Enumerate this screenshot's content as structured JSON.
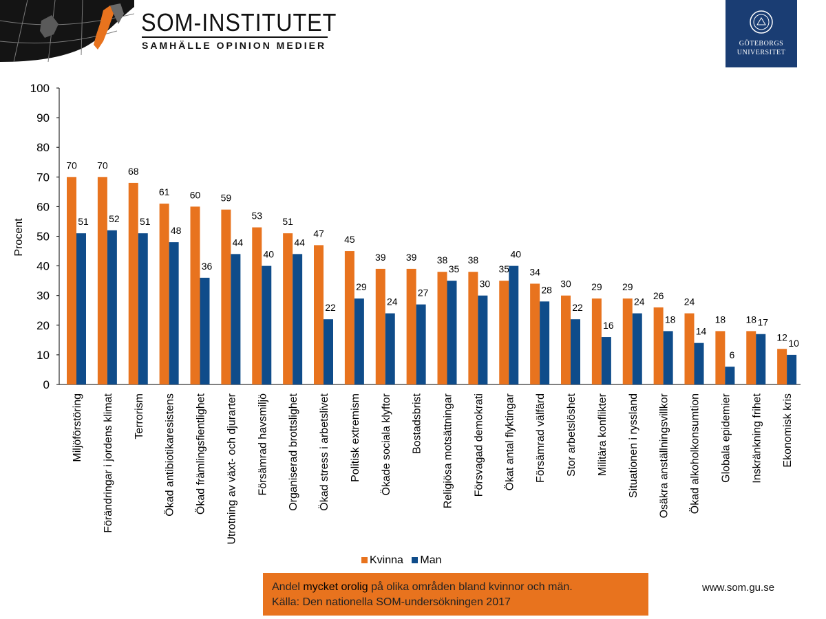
{
  "brand": {
    "title": "SOM-INSTITUTET",
    "subtitle": "SAMHÄLLE OPINION MEDIER",
    "university_line1": "GÖTEBORGS",
    "university_line2": "UNIVERSITET"
  },
  "colors": {
    "kvinna": "#e8731e",
    "man": "#0f4c8a",
    "caption_bg": "#e8731e",
    "gu_blue": "#1a3d73"
  },
  "caption": {
    "line1_pre": "Andel ",
    "line1_emph": "mycket orolig",
    "line1_post": " på olika områden bland kvinnor och män.",
    "line2": "Källa: Den nationella SOM-undersökningen 2017"
  },
  "site_url": "www.som.gu.se",
  "chart_data": {
    "type": "bar",
    "ylabel": "Procent",
    "xlabel": "",
    "ylim": [
      0,
      100
    ],
    "yticks": [
      "0",
      "10",
      "20",
      "30",
      "40",
      "50",
      "60",
      "70",
      "80",
      "90",
      "100"
    ],
    "grid": false,
    "legend_position": "bottom-center",
    "categories": [
      "Miljöförstöring",
      "Förändringar i jordens klimat",
      "Terrorism",
      "Ökad antibiotikaresistens",
      "Ökad främlingsfientlighet",
      "Utrotning av växt- och djurarter",
      "Försämrad havsmiljö",
      "Organiserad brottslighet",
      "Ökad stress i arbetslivet",
      "Politisk extremism",
      "Ökade sociala klyftor",
      "Bostadsbrist",
      "Religiösa motsättningar",
      "Försvagad demokrati",
      "Ökat antal flyktingar",
      "Försämrad välfärd",
      "Stor arbetslöshet",
      "Militära konflikter",
      "Situationen i ryssland",
      "Osäkra anställningsvillkor",
      "Ökad alkoholkonsumtion",
      "Globala epidemier",
      "Inskränkning frihet",
      "Ekonomisk kris"
    ],
    "series": [
      {
        "name": "Kvinna",
        "values": [
          70,
          70,
          68,
          61,
          60,
          59,
          53,
          51,
          47,
          45,
          39,
          39,
          38,
          38,
          35,
          34,
          30,
          29,
          29,
          26,
          24,
          18,
          18,
          12
        ]
      },
      {
        "name": "Man",
        "values": [
          51,
          52,
          51,
          48,
          36,
          44,
          40,
          44,
          22,
          29,
          24,
          27,
          35,
          30,
          40,
          28,
          22,
          16,
          24,
          18,
          14,
          6,
          17,
          10
        ]
      }
    ]
  }
}
